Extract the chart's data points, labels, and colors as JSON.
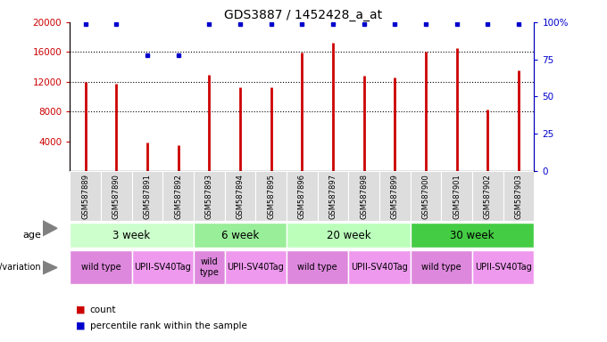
{
  "title": "GDS3887 / 1452428_a_at",
  "samples": [
    "GSM587889",
    "GSM587890",
    "GSM587891",
    "GSM587892",
    "GSM587893",
    "GSM587894",
    "GSM587895",
    "GSM587896",
    "GSM587897",
    "GSM587898",
    "GSM587899",
    "GSM587900",
    "GSM587901",
    "GSM587902",
    "GSM587903"
  ],
  "counts": [
    12000,
    11700,
    3800,
    3500,
    12900,
    11200,
    11200,
    15900,
    17200,
    12800,
    12600,
    16000,
    16500,
    8300,
    13500
  ],
  "percentiles": [
    99,
    99,
    78,
    78,
    99,
    99,
    99,
    99,
    99,
    99,
    99,
    99,
    99,
    99,
    99
  ],
  "bar_color": "#cc0000",
  "dot_color": "#0000cc",
  "ylim_left": [
    0,
    20000
  ],
  "ylim_right": [
    0,
    100
  ],
  "yticks_left": [
    4000,
    8000,
    12000,
    16000,
    20000
  ],
  "yticks_right": [
    0,
    25,
    50,
    75,
    100
  ],
  "ytick_labels_right": [
    "0",
    "25",
    "50",
    "75",
    "100%"
  ],
  "grid_values": [
    8000,
    12000,
    16000
  ],
  "age_groups": [
    {
      "label": "3 week",
      "start": 0,
      "end": 4,
      "color": "#ccffcc"
    },
    {
      "label": "6 week",
      "start": 4,
      "end": 7,
      "color": "#99ee99"
    },
    {
      "label": "20 week",
      "start": 7,
      "end": 11,
      "color": "#bbffbb"
    },
    {
      "label": "30 week",
      "start": 11,
      "end": 15,
      "color": "#44cc44"
    }
  ],
  "genotype_groups": [
    {
      "label": "wild type",
      "start": 0,
      "end": 2,
      "color": "#dd88dd"
    },
    {
      "label": "UPII-SV40Tag",
      "start": 2,
      "end": 4,
      "color": "#ee99ee"
    },
    {
      "label": "wild\ntype",
      "start": 4,
      "end": 5,
      "color": "#dd88dd"
    },
    {
      "label": "UPII-SV40Tag",
      "start": 5,
      "end": 7,
      "color": "#ee99ee"
    },
    {
      "label": "wild type",
      "start": 7,
      "end": 9,
      "color": "#dd88dd"
    },
    {
      "label": "UPII-SV40Tag",
      "start": 9,
      "end": 11,
      "color": "#ee99ee"
    },
    {
      "label": "wild type",
      "start": 11,
      "end": 13,
      "color": "#dd88dd"
    },
    {
      "label": "UPII-SV40Tag",
      "start": 13,
      "end": 15,
      "color": "#ee99ee"
    }
  ]
}
